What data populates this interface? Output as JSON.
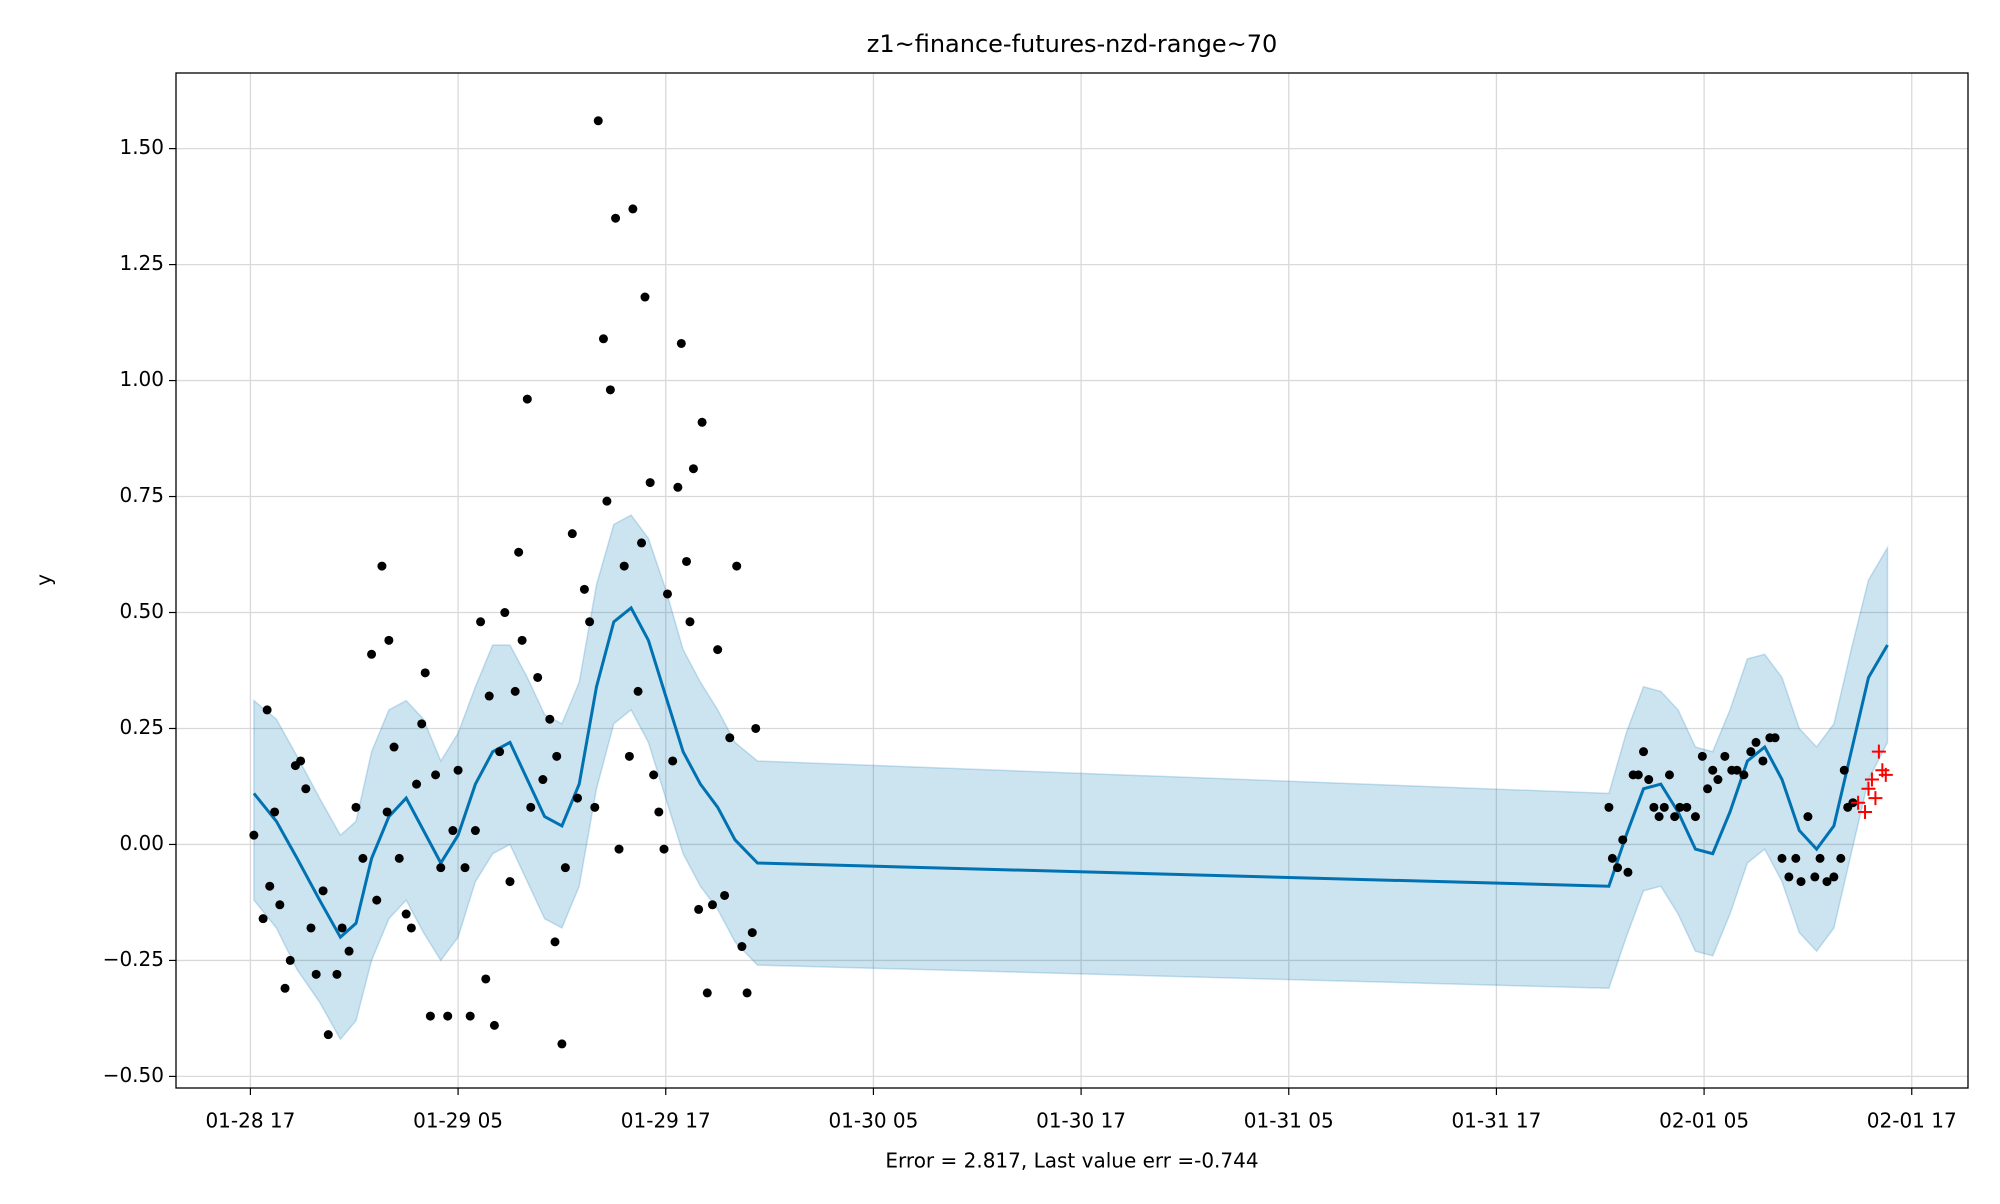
{
  "chart_data": {
    "type": "forecast",
    "title": "z1~finance-futures-nzd-range~70",
    "xlabel": "Error = 2.817, Last value err =-0.744",
    "ylabel": "y",
    "xlim": [
      "01-28 12:42",
      "02-01 20:15"
    ],
    "xticks": [
      "01-28 17",
      "01-29 05",
      "01-29 17",
      "01-30 05",
      "01-30 17",
      "01-31 05",
      "01-31 17",
      "02-01 05",
      "02-01 17"
    ],
    "ylim": [
      -0.525,
      1.663
    ],
    "yticks": [
      {
        "value": -0.5,
        "label": "−0.50"
      },
      {
        "value": -0.25,
        "label": "−0.25"
      },
      {
        "value": 0,
        "label": "0.00"
      },
      {
        "value": 0.25,
        "label": "0.25"
      },
      {
        "value": 0.5,
        "label": "0.50"
      },
      {
        "value": 0.75,
        "label": "0.75"
      },
      {
        "value": 1,
        "label": "1.00"
      },
      {
        "value": 1.25,
        "label": "1.25"
      },
      {
        "value": 1.5,
        "label": "1.50"
      }
    ],
    "grid": true,
    "points": {
      "color": "#000000",
      "x": [
        "01-28 17:12",
        "01-28 17:58",
        "01-28 17:44",
        "01-28 18:07",
        "01-28 18:24",
        "01-28 18:42",
        "01-28 19:00",
        "01-28 19:18",
        "01-28 19:36",
        "01-28 19:54",
        "01-28 20:12",
        "01-28 20:30",
        "01-28 20:48",
        "01-28 21:12",
        "01-28 21:30",
        "01-28 22:00",
        "01-28 22:18",
        "01-28 22:42",
        "01-28 23:06",
        "01-28 23:30",
        "01-29 00:00",
        "01-29 00:18",
        "01-29 00:36",
        "01-29 00:54",
        "01-29 01:00",
        "01-29 01:18",
        "01-29 01:36",
        "01-29 02:00",
        "01-29 02:18",
        "01-29 02:36",
        "01-29 02:54",
        "01-29 03:06",
        "01-29 03:24",
        "01-29 03:42",
        "01-29 04:00",
        "01-29 04:24",
        "01-29 04:42",
        "01-29 05:00",
        "01-29 05:24",
        "01-29 05:42",
        "01-29 06:00",
        "01-29 06:18",
        "01-29 06:36",
        "01-29 06:48",
        "01-29 07:06",
        "01-29 07:24",
        "01-29 07:42",
        "01-29 08:00",
        "01-29 08:18",
        "01-29 08:30",
        "01-29 08:42",
        "01-29 09:00",
        "01-29 09:12",
        "01-29 09:36",
        "01-29 09:54",
        "01-29 10:18",
        "01-29 10:36",
        "01-29 10:42",
        "01-29 11:00",
        "01-29 11:12",
        "01-29 11:36",
        "01-29 11:54",
        "01-29 12:18",
        "01-29 12:36",
        "01-29 12:54",
        "01-29 13:06",
        "01-29 13:24",
        "01-29 13:36",
        "01-29 13:48",
        "01-29 14:06",
        "01-29 14:18",
        "01-29 14:36",
        "01-29 14:54",
        "01-29 15:06",
        "01-29 15:24",
        "01-29 15:36",
        "01-29 15:48",
        "01-29 16:06",
        "01-29 16:18",
        "01-29 16:36",
        "01-29 16:54",
        "01-29 17:06",
        "01-29 17:24",
        "01-29 17:42",
        "01-29 17:54",
        "01-29 18:12",
        "01-29 18:24",
        "01-29 18:36",
        "01-29 18:54",
        "01-29 19:06",
        "01-29 19:24",
        "01-29 19:42",
        "01-29 20:00",
        "01-29 20:24",
        "01-29 20:42",
        "01-29 21:06",
        "01-29 21:24",
        "01-29 21:42",
        "01-29 22:00",
        "01-29 22:12",
        "01-31 23:30",
        "01-31 23:42",
        "02-01 00:00",
        "02-01 00:18",
        "02-01 00:36",
        "02-01 00:54",
        "02-01 01:12",
        "02-01 01:30",
        "02-01 01:48",
        "02-01 02:06",
        "02-01 02:24",
        "02-01 02:42",
        "02-01 03:00",
        "02-01 03:18",
        "02-01 03:36",
        "02-01 04:00",
        "02-01 04:30",
        "02-01 04:54",
        "02-01 05:12",
        "02-01 05:30",
        "02-01 05:48",
        "02-01 06:12",
        "02-01 06:36",
        "02-01 06:54",
        "02-01 07:18",
        "02-01 07:42",
        "02-01 08:00",
        "02-01 08:24",
        "02-01 08:48",
        "02-01 09:06",
        "02-01 09:30",
        "02-01 09:54",
        "02-01 10:18",
        "02-01 10:36",
        "02-01 11:00",
        "02-01 11:24",
        "02-01 11:42",
        "02-01 12:06",
        "02-01 12:30",
        "02-01 12:54",
        "02-01 13:06",
        "02-01 13:18",
        "02-01 13:36"
      ],
      "values": [
        0.02,
        0.29,
        -0.16,
        -0.09,
        0.07,
        -0.13,
        -0.31,
        -0.25,
        0.17,
        0.18,
        0.12,
        -0.18,
        -0.28,
        -0.1,
        -0.41,
        -0.28,
        -0.18,
        -0.23,
        0.08,
        -0.03,
        0.41,
        -0.12,
        0.6,
        0.07,
        0.44,
        0.21,
        -0.03,
        -0.15,
        -0.18,
        0.13,
        0.26,
        0.37,
        -0.37,
        0.15,
        -0.05,
        -0.37,
        0.03,
        0.16,
        -0.05,
        -0.37,
        0.03,
        0.48,
        -0.29,
        0.32,
        -0.39,
        0.2,
        0.5,
        -0.08,
        0.33,
        0.63,
        0.44,
        0.96,
        0.08,
        0.36,
        0.14,
        0.27,
        -0.21,
        0.19,
        -0.43,
        -0.05,
        0.67,
        0.1,
        0.55,
        0.48,
        0.08,
        1.56,
        1.09,
        0.74,
        0.98,
        1.35,
        -0.01,
        0.6,
        0.19,
        1.37,
        0.33,
        0.65,
        1.18,
        0.78,
        0.15,
        0.07,
        -0.01,
        0.54,
        0.18,
        0.77,
        1.08,
        0.61,
        0.48,
        0.81,
        -0.14,
        0.91,
        -0.32,
        -0.13,
        0.42,
        -0.11,
        0.23,
        0.6,
        -0.22,
        -0.32,
        -0.19,
        0.25,
        0.08,
        -0.03,
        -0.05,
        0.01,
        -0.06,
        0.15,
        0.15,
        0.2,
        0.14,
        0.08,
        0.06,
        0.08,
        0.15,
        0.06,
        0.08,
        0.08,
        0.06,
        0.19,
        0.12,
        0.16,
        0.14,
        0.19,
        0.16,
        0.16,
        0.15,
        0.2,
        0.22,
        0.18,
        0.23,
        0.23,
        -0.03,
        -0.07,
        -0.03,
        -0.08,
        0.06,
        -0.07,
        -0.03,
        -0.08,
        -0.07,
        -0.03,
        0.16,
        0.08,
        0.09
      ]
    },
    "forecast": {
      "color": "#0072b2",
      "x": [
        "01-28 17:12",
        "01-28 18:30",
        "01-28 19:42",
        "01-28 21:00",
        "01-28 22:12",
        "01-28 23:06",
        "01-29 00:00",
        "01-29 01:00",
        "01-29 02:00",
        "01-29 03:00",
        "01-29 04:00",
        "01-29 05:00",
        "01-29 06:00",
        "01-29 07:00",
        "01-29 08:00",
        "01-29 09:00",
        "01-29 10:00",
        "01-29 11:00",
        "01-29 12:00",
        "01-29 13:00",
        "01-29 14:00",
        "01-29 15:00",
        "01-29 16:00",
        "01-29 17:00",
        "01-29 18:00",
        "01-29 19:00",
        "01-29 20:00",
        "01-29 21:00",
        "01-29 22:18",
        "01-31 23:30",
        "02-01 00:30",
        "02-01 01:30",
        "02-01 02:30",
        "02-01 03:30",
        "02-01 04:30",
        "02-01 05:30",
        "02-01 06:30",
        "02-01 07:30",
        "02-01 08:30",
        "02-01 09:30",
        "02-01 10:30",
        "02-01 11:30",
        "02-01 12:30",
        "02-01 13:30",
        "02-01 14:30",
        "02-01 15:36"
      ],
      "values": [
        0.11,
        0.05,
        -0.03,
        -0.12,
        -0.2,
        -0.17,
        -0.03,
        0.06,
        0.1,
        0.03,
        -0.04,
        0.02,
        0.13,
        0.2,
        0.22,
        0.14,
        0.06,
        0.04,
        0.13,
        0.34,
        0.48,
        0.51,
        0.44,
        0.32,
        0.2,
        0.13,
        0.08,
        0.01,
        -0.04,
        -0.09,
        0.02,
        0.12,
        0.13,
        0.07,
        -0.01,
        -0.02,
        0.07,
        0.18,
        0.21,
        0.14,
        0.03,
        -0.01,
        0.04,
        0.2,
        0.36,
        0.43
      ],
      "lower": [
        -0.12,
        -0.18,
        -0.27,
        -0.34,
        -0.42,
        -0.38,
        -0.25,
        -0.16,
        -0.12,
        -0.19,
        -0.25,
        -0.2,
        -0.08,
        -0.02,
        0.0,
        -0.08,
        -0.16,
        -0.18,
        -0.09,
        0.12,
        0.26,
        0.29,
        0.22,
        0.1,
        -0.02,
        -0.09,
        -0.14,
        -0.21,
        -0.26,
        -0.31,
        -0.2,
        -0.1,
        -0.09,
        -0.15,
        -0.23,
        -0.24,
        -0.15,
        -0.04,
        -0.01,
        -0.08,
        -0.19,
        -0.23,
        -0.18,
        -0.02,
        0.14,
        0.22
      ],
      "upper": [
        0.31,
        0.27,
        0.19,
        0.1,
        0.02,
        0.05,
        0.2,
        0.29,
        0.31,
        0.27,
        0.18,
        0.24,
        0.34,
        0.43,
        0.43,
        0.36,
        0.28,
        0.26,
        0.35,
        0.56,
        0.69,
        0.71,
        0.66,
        0.55,
        0.42,
        0.35,
        0.29,
        0.22,
        0.18,
        0.11,
        0.24,
        0.34,
        0.33,
        0.29,
        0.21,
        0.2,
        0.29,
        0.4,
        0.41,
        0.36,
        0.25,
        0.21,
        0.26,
        0.42,
        0.57,
        0.64
      ]
    },
    "test_points": {
      "color": "#ff0000",
      "x": [
        "02-01 13:54",
        "02-01 14:18",
        "02-01 14:30",
        "02-01 14:42",
        "02-01 14:54",
        "02-01 15:06",
        "02-01 15:18",
        "02-01 15:30"
      ],
      "values": [
        0.09,
        0.07,
        0.12,
        0.14,
        0.1,
        0.2,
        0.16,
        0.15
      ]
    }
  }
}
